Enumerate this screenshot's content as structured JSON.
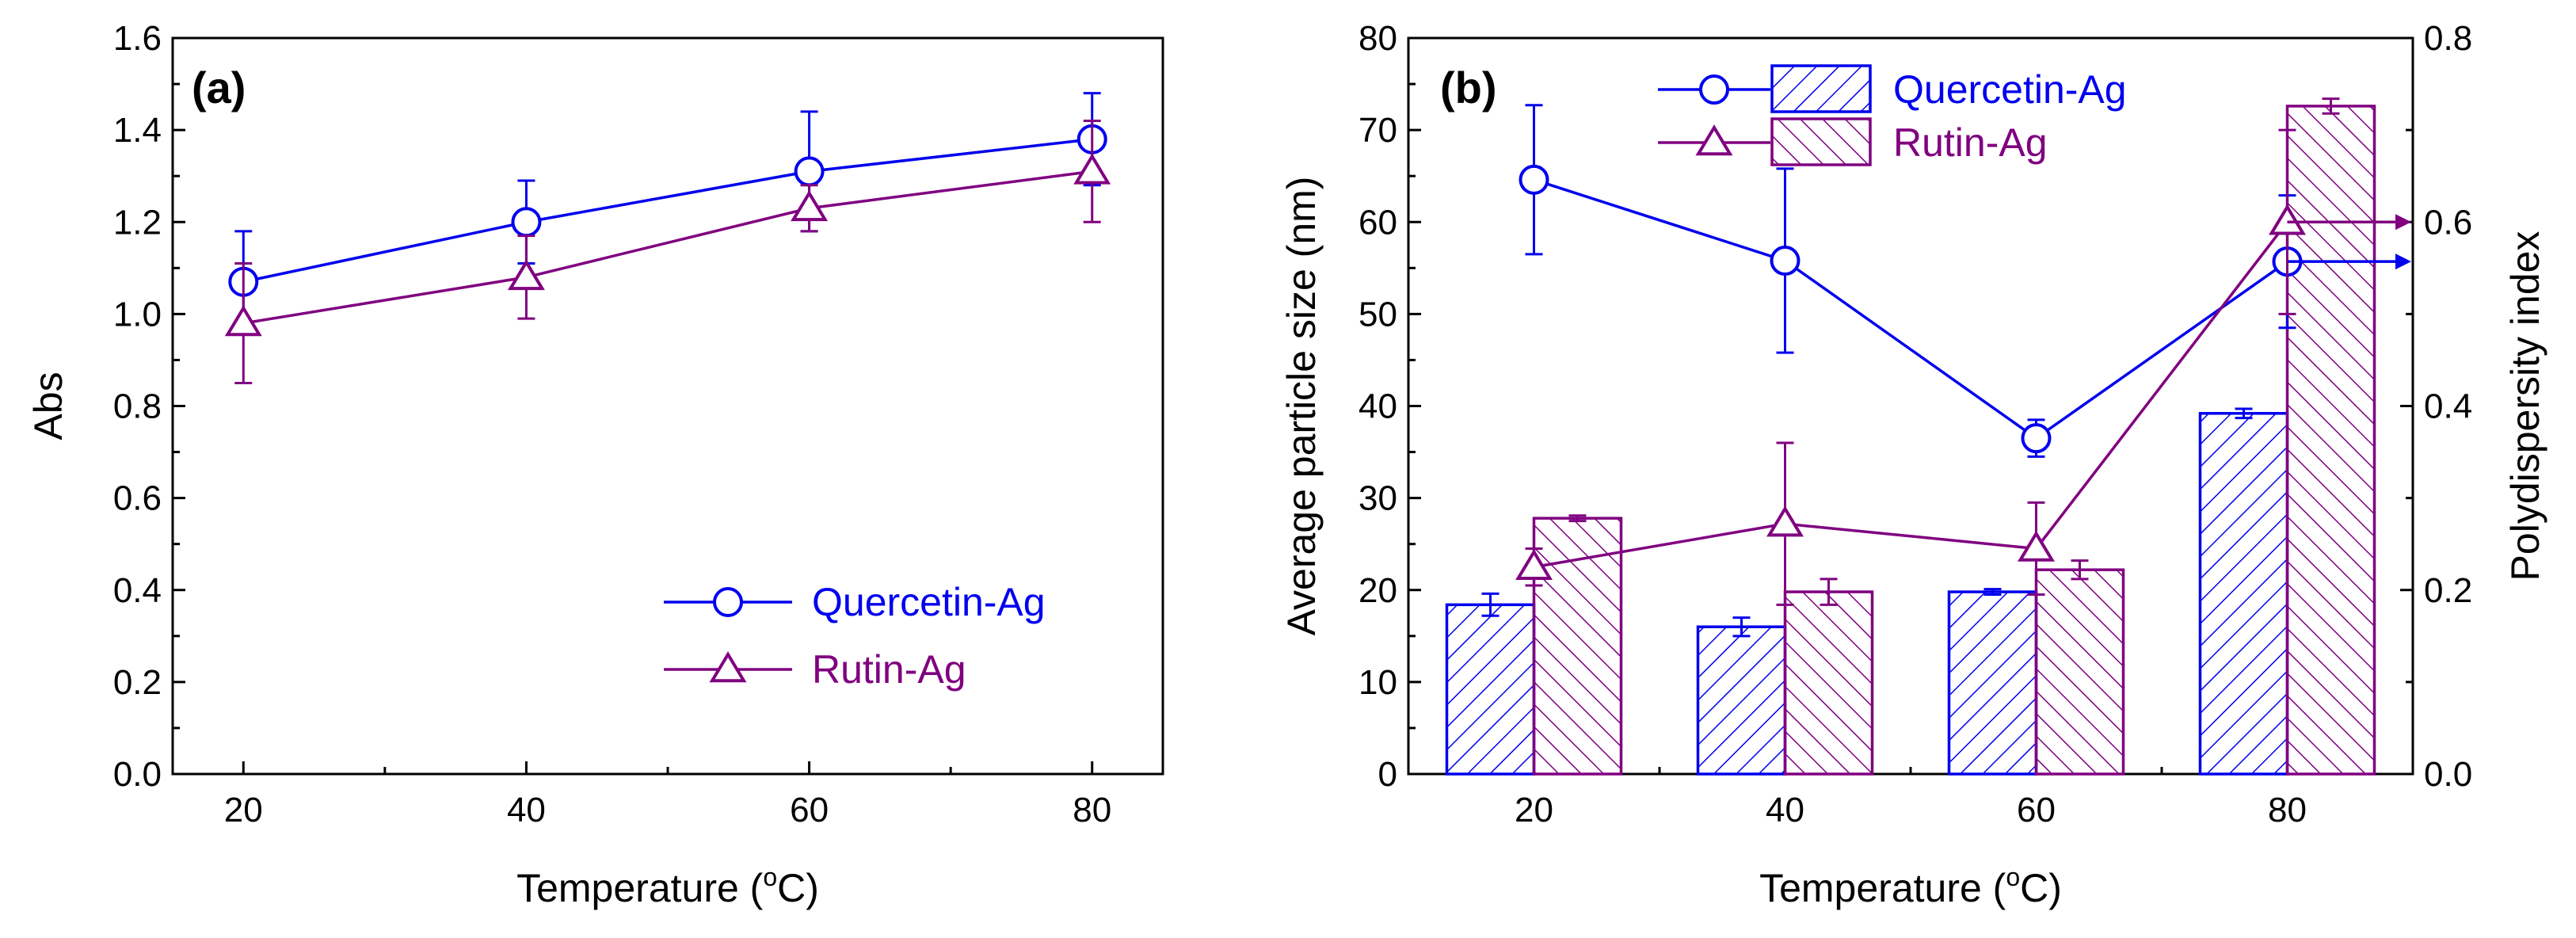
{
  "chart_data": [
    {
      "panel": "(a)",
      "type": "line",
      "xlabel_main": "Temperature (",
      "xlabel_sup": "o",
      "xlabel_end": "C)",
      "ylabel": "Abs",
      "xlim": [
        15,
        85
      ],
      "ylim": [
        0.0,
        1.6
      ],
      "xticks": [
        20,
        40,
        60,
        80
      ],
      "yticks": [
        "0.0",
        "0.2",
        "0.4",
        "0.6",
        "0.8",
        "1.0",
        "1.2",
        "1.4",
        "1.6"
      ],
      "legend_position": "bottom-right",
      "series": [
        {
          "name": "Quercetin-Ag",
          "color": "#0000ee",
          "marker": "circle",
          "x": [
            20,
            40,
            60,
            80
          ],
          "y": [
            1.07,
            1.2,
            1.31,
            1.38
          ],
          "err": [
            0.11,
            0.09,
            0.13,
            0.1
          ]
        },
        {
          "name": "Rutin-Ag",
          "color": "#800080",
          "marker": "triangle",
          "x": [
            20,
            40,
            60,
            80
          ],
          "y": [
            0.98,
            1.08,
            1.23,
            1.31
          ],
          "err": [
            0.13,
            0.09,
            0.05,
            0.11
          ]
        }
      ]
    },
    {
      "panel": "(b)",
      "type": "bar",
      "xlabel_main": "Temperature (",
      "xlabel_sup": "o",
      "xlabel_end": "C)",
      "ylabel_left": "Average particle size (nm)",
      "ylabel_right": "Polydispersity index",
      "categories": [
        20,
        40,
        60,
        80
      ],
      "xlim": [
        10,
        90
      ],
      "ylim_left": [
        0,
        80
      ],
      "ylim_right": [
        0.0,
        0.8
      ],
      "yticks_left": [
        "0",
        "10",
        "20",
        "30",
        "40",
        "50",
        "60",
        "70",
        "80"
      ],
      "yticks_right": [
        "0.0",
        "0.2",
        "0.4",
        "0.6",
        "0.8"
      ],
      "legend_position": "top-left",
      "bar_series": [
        {
          "name": "Quercetin-Ag",
          "color": "#0000ee",
          "hatch": "forward",
          "values": [
            18.4,
            16.0,
            19.8,
            39.2
          ],
          "err": [
            1.2,
            1.0,
            0.3,
            0.5
          ]
        },
        {
          "name": "Rutin-Ag",
          "color": "#800080",
          "hatch": "backward",
          "values": [
            27.8,
            19.8,
            22.2,
            72.6
          ],
          "err": [
            0.3,
            1.4,
            1.0,
            0.8
          ]
        }
      ],
      "pdi_series": [
        {
          "name": "Quercetin-Ag",
          "color": "#0000ee",
          "marker": "circle",
          "values": [
            0.646,
            0.558,
            0.365,
            0.557
          ],
          "err": [
            0.081,
            0.1,
            0.02,
            0.072
          ]
        },
        {
          "name": "Rutin-Ag",
          "color": "#800080",
          "marker": "triangle",
          "values": [
            0.225,
            0.272,
            0.245,
            0.6
          ],
          "err": [
            0.02,
            0.088,
            0.05,
            0.1
          ]
        }
      ]
    }
  ]
}
